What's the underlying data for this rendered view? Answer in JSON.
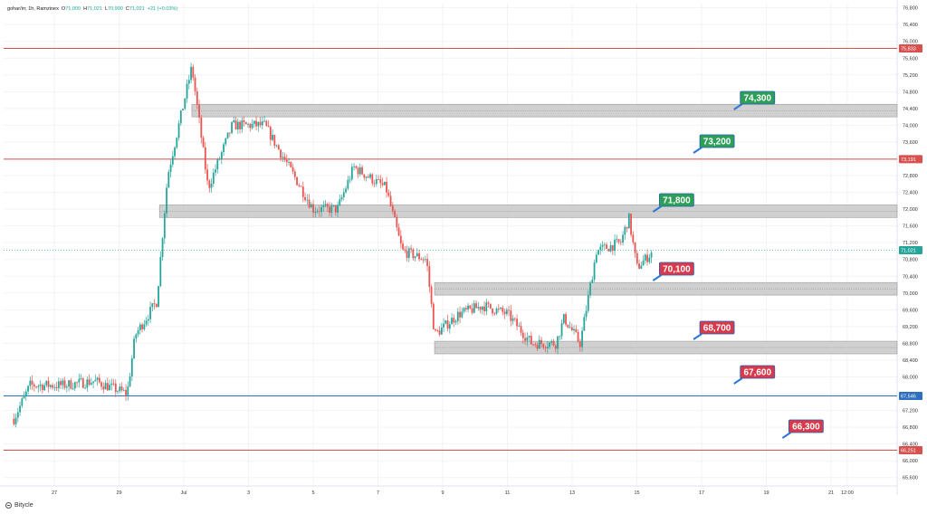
{
  "header": {
    "symbol": "gohar/irr, 1h, Ramzinex",
    "o_label": "O",
    "o_value": "71,000",
    "h_label": "H",
    "h_value": "71,021",
    "l_label": "L",
    "l_value": "70,900",
    "c_label": "C",
    "c_value": "71,021",
    "change": "+21 (+0.03%)"
  },
  "watermark": {
    "brand": "Bitycle"
  },
  "colors": {
    "up": "#26a69a",
    "down": "#ef5350",
    "resistance_line": "#d9514e",
    "support_line": "#2f6fbf",
    "zone_fill": "#c8c8c8",
    "bullish_label": "#2e9f57",
    "bearish_label": "#d83a4b",
    "label_pointer": "#2c78d6"
  },
  "chart_data": {
    "type": "candlestick",
    "timeframe": "1h",
    "x_tick_labels": [
      "27",
      "29",
      "Jul",
      "3",
      "5",
      "7",
      "9",
      "11",
      "13",
      "15",
      "17",
      "19",
      "21",
      "12:00"
    ],
    "y_tick_labels": [
      "76,800",
      "76,400",
      "76,000",
      "75,600",
      "75,200",
      "74,800",
      "74,400",
      "74,000",
      "73,600",
      "73,200",
      "72,800",
      "72,400",
      "72,000",
      "71,600",
      "71,200",
      "70,800",
      "70,400",
      "70,000",
      "69,600",
      "69,200",
      "68,800",
      "68,400",
      "68,000",
      "67,600",
      "67,200",
      "66,800",
      "66,400",
      "66,000",
      "65,600"
    ],
    "ylim": [
      65400,
      76900
    ],
    "price_path": [
      {
        "t": "Jun 25 18:00",
        "price": 67000
      },
      {
        "t": "Jun 26 06:00",
        "price": 67800
      },
      {
        "t": "Jun 27 06:00",
        "price": 67800
      },
      {
        "t": "Jun 28 06:00",
        "price": 67900
      },
      {
        "t": "Jun 29 06:00",
        "price": 67600
      },
      {
        "t": "Jun 29 12:00",
        "price": 69000
      },
      {
        "t": "Jun 30 04:00",
        "price": 69800
      },
      {
        "t": "Jun 30 12:00",
        "price": 72800
      },
      {
        "t": "Jul 01 06:00",
        "price": 75400
      },
      {
        "t": "Jul 01 18:00",
        "price": 72500
      },
      {
        "t": "Jul 02 12:00",
        "price": 74000
      },
      {
        "t": "Jul 03 12:00",
        "price": 74000
      },
      {
        "t": "Jul 04 06:00",
        "price": 73000
      },
      {
        "t": "Jul 05 00:00",
        "price": 72000
      },
      {
        "t": "Jul 05 18:00",
        "price": 72000
      },
      {
        "t": "Jul 06 06:00",
        "price": 73000
      },
      {
        "t": "Jul 07 06:00",
        "price": 72500
      },
      {
        "t": "Jul 07 18:00",
        "price": 71000
      },
      {
        "t": "Jul 08 12:00",
        "price": 70800
      },
      {
        "t": "Jul 08 18:00",
        "price": 69000
      },
      {
        "t": "Jul 09 12:00",
        "price": 69500
      },
      {
        "t": "Jul 10 06:00",
        "price": 69700
      },
      {
        "t": "Jul 11 00:00",
        "price": 69500
      },
      {
        "t": "Jul 11 18:00",
        "price": 68800
      },
      {
        "t": "Jul 12 12:00",
        "price": 68800
      },
      {
        "t": "Jul 12 18:00",
        "price": 69400
      },
      {
        "t": "Jul 13 06:00",
        "price": 68800
      },
      {
        "t": "Jul 13 18:00",
        "price": 71000
      },
      {
        "t": "Jul 14 12:00",
        "price": 71200
      },
      {
        "t": "Jul 14 18:00",
        "price": 71800
      },
      {
        "t": "Jul 15 00:00",
        "price": 70600
      },
      {
        "t": "Jul 15 12:00",
        "price": 71000
      }
    ],
    "horizontal_lines": [
      {
        "price": 75833,
        "label": "75,833",
        "style": "resistance"
      },
      {
        "price": 73191,
        "label": "73,191",
        "style": "resistance"
      },
      {
        "price": 67546,
        "label": "67,546",
        "style": "support"
      },
      {
        "price": 66251,
        "label": "66,251",
        "style": "resistance"
      }
    ],
    "zones": [
      {
        "from": 74200,
        "to": 74500,
        "start": "Jul 01 06:00"
      },
      {
        "from": 71800,
        "to": 72100,
        "start": "Jun 30 06:00"
      },
      {
        "from": 69950,
        "to": 70250,
        "start": "Jul 08 18:00"
      },
      {
        "from": 68550,
        "to": 68850,
        "start": "Jul 08 18:00"
      }
    ],
    "level_labels": [
      {
        "text": "74,300",
        "tone": "bullish",
        "anchor_time": "Jul 18 00:00"
      },
      {
        "text": "73,200",
        "tone": "bullish",
        "anchor_time": "Jul 16 18:00"
      },
      {
        "text": "71,800",
        "tone": "bullish",
        "anchor_time": "Jul 15 12:00"
      },
      {
        "text": "70,100",
        "tone": "bearish",
        "anchor_time": "Jul 15 12:00"
      },
      {
        "text": "68,700",
        "tone": "bearish",
        "anchor_time": "Jul 16 18:00"
      },
      {
        "text": "67,600",
        "tone": "bearish",
        "anchor_time": "Jul 18 00:00"
      },
      {
        "text": "66,300",
        "tone": "bearish",
        "anchor_time": "Jul 19 12:00"
      }
    ],
    "last_price": {
      "price": 71021,
      "label": "71,021"
    },
    "grid": true
  }
}
